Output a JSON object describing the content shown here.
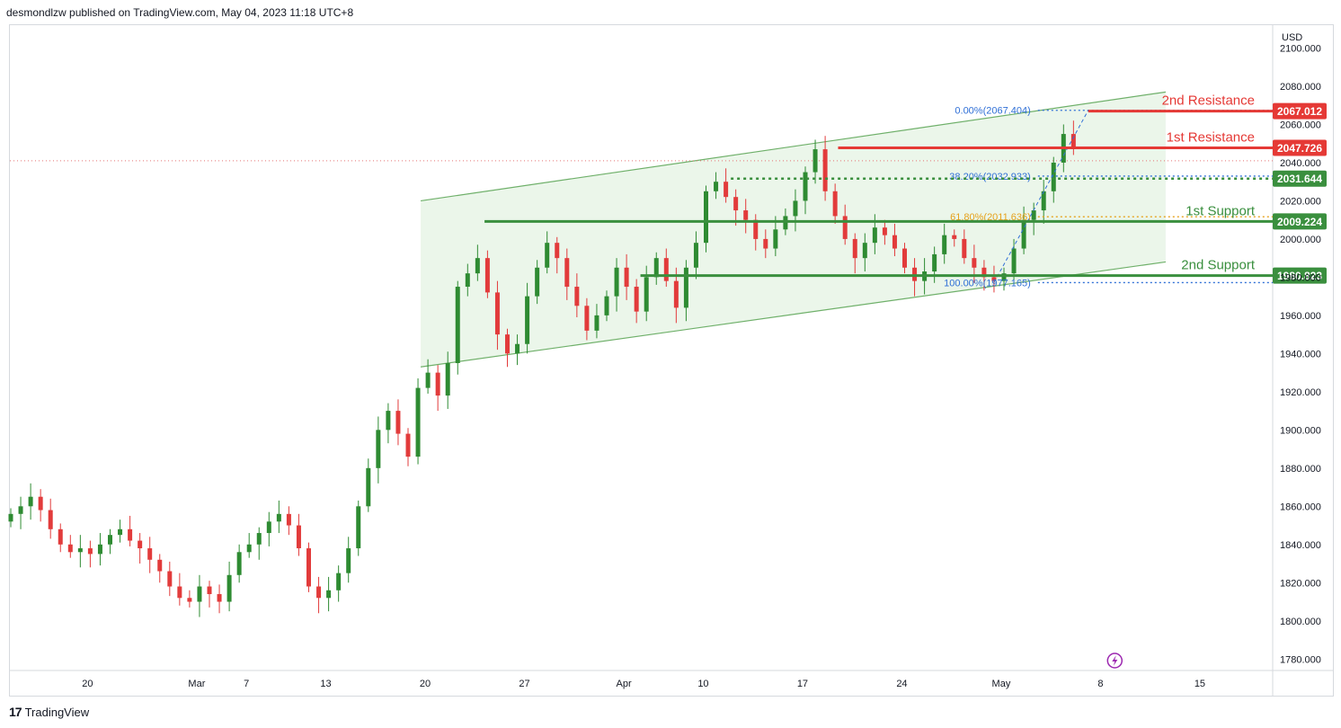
{
  "header": {
    "published": "desmondlzw published on TradingView.com, May 04, 2023 11:18 UTC+8"
  },
  "footer": {
    "brand": "TradingView",
    "logo_glyph": "17"
  },
  "colors": {
    "up": "#2e8b32",
    "down": "#e23b3b",
    "resistance": "#e53935",
    "support": "#3a8f3e",
    "channel_fill": "#e8f5e6",
    "channel_line": "#6fb06a",
    "fib_blue": "#2f6fd6",
    "fib_orange": "#e6a11a"
  },
  "chart_data": {
    "type": "candlestick",
    "symbol_currency": "USD",
    "x_ticks": [
      {
        "label": "20",
        "i": 7
      },
      {
        "label": "Mar",
        "i": 18
      },
      {
        "label": "7",
        "i": 23
      },
      {
        "label": "13",
        "i": 31
      },
      {
        "label": "20",
        "i": 41
      },
      {
        "label": "27",
        "i": 51
      },
      {
        "label": "Apr",
        "i": 61
      },
      {
        "label": "10",
        "i": 69
      },
      {
        "label": "17",
        "i": 79
      },
      {
        "label": "24",
        "i": 89
      },
      {
        "label": "May",
        "i": 99
      },
      {
        "label": "8",
        "i": 109
      },
      {
        "label": "15",
        "i": 119
      }
    ],
    "y_ticks": [
      1780,
      1800,
      1820,
      1840,
      1860,
      1880,
      1900,
      1920,
      1940,
      1960,
      1980,
      2000,
      2020,
      2040,
      2060,
      2080,
      2100
    ],
    "y_tick_labels": [
      "1780.000",
      "1800.000",
      "1820.000",
      "1840.000",
      "1860.000",
      "1880.000",
      "1900.000",
      "1920.000",
      "1940.000",
      "1960.000",
      "1980.000",
      "2000.000",
      "2020.000",
      "2040.000",
      "2060.000",
      "2080.000",
      "2100.000"
    ],
    "ylim": [
      1774,
      2112
    ],
    "close": [
      1856,
      1860,
      1865,
      1858,
      1848,
      1840,
      1836,
      1838,
      1835,
      1840,
      1845,
      1848,
      1842,
      1838,
      1832,
      1826,
      1818,
      1812,
      1810,
      1818,
      1814,
      1810,
      1824,
      1836,
      1840,
      1846,
      1852,
      1856,
      1850,
      1838,
      1818,
      1812,
      1816,
      1825,
      1838,
      1860,
      1880,
      1900,
      1910,
      1898,
      1886,
      1922,
      1930,
      1918,
      1935,
      1975,
      1982,
      1990,
      1972,
      1950,
      1940,
      1945,
      1970,
      1985,
      1998,
      1990,
      1975,
      1965,
      1952,
      1960,
      1970,
      1985,
      1975,
      1962,
      1980,
      1990,
      1978,
      1964,
      1985,
      1998,
      2025,
      2030,
      2022,
      2015,
      2010,
      2000,
      1995,
      2005,
      2012,
      2020,
      2035,
      2047,
      2025,
      2012,
      2000,
      1990,
      1998,
      2006,
      2002,
      1995,
      1985,
      1978,
      1983,
      1992,
      2002,
      2000,
      1990,
      1985,
      1980,
      1978,
      1982,
      1995,
      2010,
      2015,
      2025,
      2040,
      2055,
      2048
    ],
    "annotations": {
      "levels": [
        {
          "label": "2nd Resistance",
          "value": 2067.012,
          "tag": "2067.012",
          "style": "solid",
          "kind": "resistance"
        },
        {
          "label": "1st Resistance",
          "value": 2047.726,
          "tag": "2047.726",
          "style": "solid",
          "kind": "resistance"
        },
        {
          "label": "",
          "value": 2031.644,
          "tag": "2031.644",
          "style": "dotted",
          "kind": "support"
        },
        {
          "label": "1st Support",
          "value": 2009.224,
          "tag": "2009.224",
          "style": "solid",
          "kind": "support"
        },
        {
          "label": "2nd Support",
          "value": 1980.823,
          "tag": "1980.823",
          "style": "solid",
          "kind": "support"
        }
      ],
      "fibonacci": [
        {
          "label": "0.00%(2067.404)",
          "value": 2067.404,
          "color": "blue"
        },
        {
          "label": "38.20%(2032.933)",
          "value": 2032.933,
          "color": "blue"
        },
        {
          "label": "61.80%(2011.636)",
          "value": 2011.636,
          "color": "orange"
        },
        {
          "label": "100.00%(1977.165)",
          "value": 1977.165,
          "color": "blue"
        }
      ],
      "channel": {
        "start_i": 41,
        "end_i": 119,
        "upper": [
          2020,
          2077
        ],
        "lower": [
          1933,
          1988
        ]
      },
      "current_price": 2041,
      "lightning_icon_i": 106
    }
  }
}
